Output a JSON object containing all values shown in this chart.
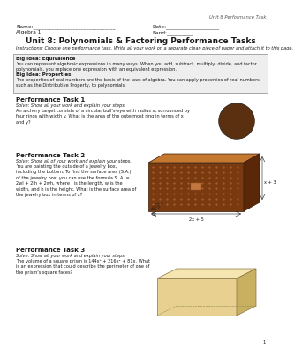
{
  "header_right": "Unit 8 Performance Task",
  "name_label": "Name:_______________________________",
  "algebra_label": "Algebra 1",
  "date_label": "Date:____________________",
  "band_label": "Band:__________",
  "title": "Unit 8: Polynomials & Factoring Performance Tasks",
  "instructions": "Instructions: Choose one performance task. Write all your work on a separate clean piece of paper and attach it to this page.",
  "big_idea_title1": "Big Idea: Equivalence",
  "big_idea_text1": "You can represent algebraic expressions in many ways. When you add, subtract, multiply, divide, and factor\npolynomials, you replace one expression with an equivalent expression.",
  "big_idea_title2": "Big Idea: Properties",
  "big_idea_text2": "The properties of real numbers are the basis of the laws of algebra. You can apply properties of real numbers,\nsuch as the Distributive Property, to polynomials.",
  "task1_title": "Performance Task 1",
  "task1_solve": "Solve: Show all your work and explain your steps.",
  "task1_text": "An archery target consists of a circular bull's-eye with radius x, surrounded by\nfour rings with width y. What is the area of the outermost ring in terms of x\nand y?",
  "task2_title": "Performance Task 2",
  "task2_solve": "Solve: Show all of your work and explain your steps.",
  "task2_text": "You are painting the outside of a jewelry box,\nincluding the bottom. To find the surface area (S.A.)\nof the jewelry box, you can use the formula S. A. =\n2wl + 2lh + 2wh, where l is the length, w is the\nwidth, and h is the height. What is the surface area of\nthe jewelry box in terms of x?",
  "task2_dim1": "x + 3",
  "task2_dim2": "2x + 5",
  "task2_dim3": "5x",
  "task3_title": "Performance Task 3",
  "task3_solve": "Solve: Show all your work and explain your steps.",
  "task3_text": "The volume of a square prism is 144x³ + 216x² + 81x. What\nis an expression that could describe the perimeter of one of\nthe prism's square faces?",
  "page_number": "1",
  "bg_color": "#ffffff",
  "text_color": "#1a1a1a",
  "box_bg": "#eeeeee",
  "box_border": "#999999"
}
